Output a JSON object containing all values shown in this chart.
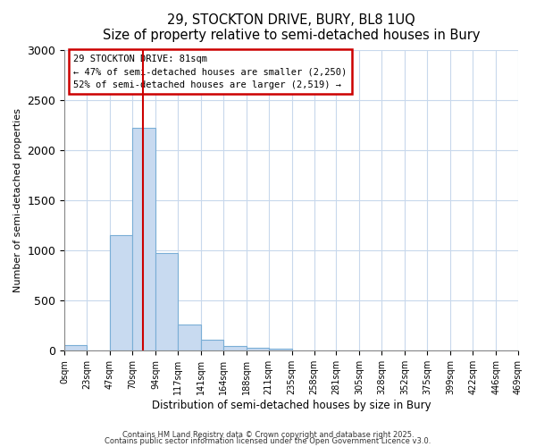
{
  "title": "29, STOCKTON DRIVE, BURY, BL8 1UQ",
  "subtitle": "Size of property relative to semi-detached houses in Bury",
  "xlabel": "Distribution of semi-detached houses by size in Bury",
  "ylabel": "Number of semi-detached properties",
  "bin_edges": [
    0,
    23,
    47,
    70,
    94,
    117,
    141,
    164,
    188,
    211,
    235,
    258,
    281,
    305,
    328,
    352,
    375,
    399,
    422,
    446,
    469
  ],
  "bar_heights": [
    60,
    0,
    1150,
    2225,
    975,
    265,
    110,
    50,
    30,
    20,
    5,
    0,
    0,
    0,
    0,
    0,
    0,
    0,
    0,
    0
  ],
  "bar_color": "#c8daf0",
  "bar_edge_color": "#7aaed6",
  "grid_color": "#c8d8ec",
  "red_line_x": 81,
  "annotation_title": "29 STOCKTON DRIVE: 81sqm",
  "annotation_line1": "← 47% of semi-detached houses are smaller (2,250)",
  "annotation_line2": "52% of semi-detached houses are larger (2,519) →",
  "annotation_color": "#cc0000",
  "ylim": [
    0,
    3000
  ],
  "yticks": [
    0,
    500,
    1000,
    1500,
    2000,
    2500,
    3000
  ],
  "tick_labels": [
    "0sqm",
    "23sqm",
    "47sqm",
    "70sqm",
    "94sqm",
    "117sqm",
    "141sqm",
    "164sqm",
    "188sqm",
    "211sqm",
    "235sqm",
    "258sqm",
    "281sqm",
    "305sqm",
    "328sqm",
    "352sqm",
    "375sqm",
    "399sqm",
    "422sqm",
    "446sqm",
    "469sqm"
  ],
  "footer1": "Contains HM Land Registry data © Crown copyright and database right 2025.",
  "footer2": "Contains public sector information licensed under the Open Government Licence v3.0.",
  "bg_color": "#ffffff"
}
